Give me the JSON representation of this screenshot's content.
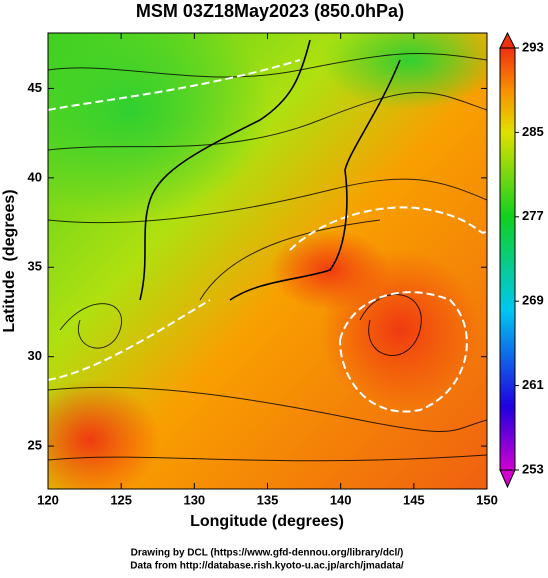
{
  "chart_data": {
    "type": "map",
    "title": "MSM 03Z18May2023 (850.0hPa)",
    "xlabel": "Longitude (degrees)",
    "ylabel": "Latitude  (degrees)",
    "xlim": [
      120,
      150
    ],
    "xticks": [
      120,
      125,
      130,
      135,
      140,
      145,
      150
    ],
    "ylim": [
      22.6,
      48.1
    ],
    "yticks": [
      25,
      30,
      35,
      40,
      45
    ],
    "colorbar": {
      "lim": [
        253,
        293
      ],
      "ticks": [
        253,
        261,
        269,
        277,
        285,
        293
      ]
    },
    "credits": [
      "Drawing by DCL (https://www.gfd-dennou.org/library/dcl/)",
      "Data from http://database.rish.kyoto-u.ac.jp/arch/jmadata/"
    ]
  }
}
